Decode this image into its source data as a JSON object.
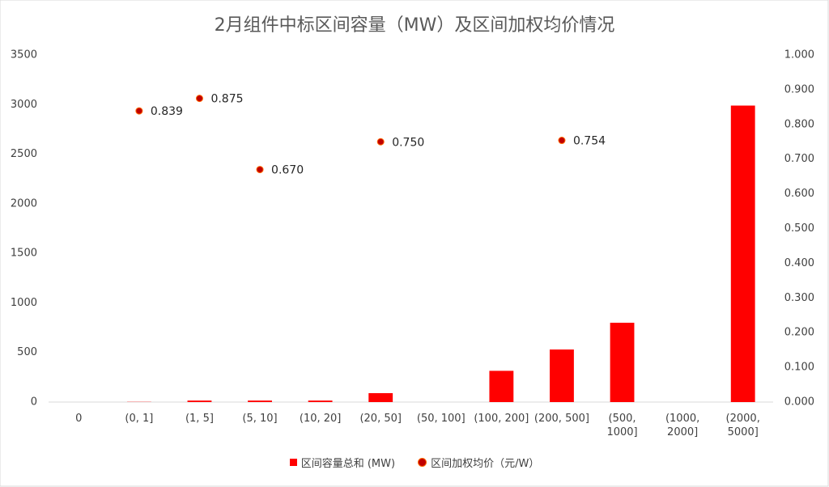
{
  "chart_data": {
    "type": "bar",
    "title": "2月组件中标区间容量（MW）及区间加权均价情况",
    "categories": [
      "0",
      "(0, 1]",
      "(1, 5]",
      "(5, 10]",
      "(10, 20]",
      "(20, 50]",
      "(50, 100]",
      "(100, 200]",
      "(200, 500]",
      "(500, 1000]",
      "(1000, 2000]",
      "(2000, 5000]"
    ],
    "series": [
      {
        "name": "区间容量总和 (MW)",
        "type": "bar",
        "color": "#ff0000",
        "values": [
          0,
          2,
          15,
          15,
          15,
          90,
          0,
          315,
          530,
          800,
          0,
          2990
        ]
      },
      {
        "name": "区间加权均价（元/W）",
        "type": "scatter",
        "axis": "y2",
        "color": "#c00000",
        "values": [
          null,
          0.839,
          0.875,
          0.67,
          null,
          0.75,
          null,
          null,
          0.754,
          null,
          null,
          null
        ],
        "value_labels": [
          null,
          "0.839",
          "0.875",
          "0.670",
          null,
          "0.750",
          null,
          null,
          "0.754",
          null,
          null,
          null
        ]
      }
    ],
    "ylim": [
      0,
      3500
    ],
    "yticks": [
      0,
      500,
      1000,
      1500,
      2000,
      2500,
      3000,
      3500
    ],
    "y2lim": [
      0,
      1
    ],
    "y2ticks": [
      {
        "value": 0,
        "label": "0.000"
      },
      {
        "value": 0.1,
        "label": "0.100"
      },
      {
        "value": 0.2,
        "label": "0.200"
      },
      {
        "value": 0.3,
        "label": "0.300"
      },
      {
        "value": 0.4,
        "label": "0.400"
      },
      {
        "value": 0.5,
        "label": "0.500"
      },
      {
        "value": 0.6,
        "label": "0.600"
      },
      {
        "value": 0.7,
        "label": "0.700"
      },
      {
        "value": 0.8,
        "label": "0.800"
      },
      {
        "value": 0.9,
        "label": "0.900"
      },
      {
        "value": 1,
        "label": "1.000"
      }
    ],
    "legend": "bottom"
  }
}
